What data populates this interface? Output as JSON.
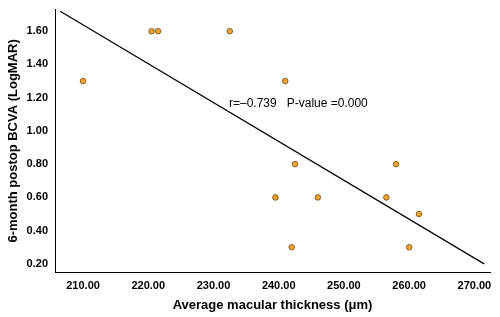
{
  "chart_data": {
    "type": "scatter",
    "x_label": "Average macular thickness (μm)",
    "y_label": "6-month postop BCVA (LogMAR)",
    "annotation": "r=–0.739   P-value =0.000",
    "series": [
      {
        "type": "scatter",
        "color": "#e8a33a",
        "marker": "circle",
        "x": [
          210,
          220.5,
          221.5,
          232.5,
          239.5,
          241,
          242,
          242.5,
          246,
          256.5,
          258,
          260,
          261.5
        ],
        "values": [
          1.3,
          1.6,
          1.6,
          1.6,
          0.6,
          1.3,
          0.3,
          0.8,
          0.6,
          0.6,
          0.8,
          0.3,
          0.5
        ]
      },
      {
        "type": "line",
        "color": "#000000",
        "line_style": "solid",
        "x": [
          206.5,
          271.5
        ],
        "values": [
          1.72,
          0.2
        ]
      }
    ],
    "xlim": [
      205.7,
      272.4
    ],
    "xticks": [
      {
        "value": 210,
        "label": "210.00"
      },
      {
        "value": 220,
        "label": "220.00"
      },
      {
        "value": 230,
        "label": "230.00"
      },
      {
        "value": 240,
        "label": "240.00"
      },
      {
        "value": 250,
        "label": "250.00"
      },
      {
        "value": 260,
        "label": "260.00"
      },
      {
        "value": 270,
        "label": "270.00"
      }
    ],
    "ylim": [
      0.15,
      1.73
    ],
    "yticks": [
      {
        "value": 0.2,
        "label": "0.20"
      },
      {
        "value": 0.4,
        "label": "0.40"
      },
      {
        "value": 0.6,
        "label": "0.60"
      },
      {
        "value": 0.8,
        "label": "0.80"
      },
      {
        "value": 1.0,
        "label": "1.00"
      },
      {
        "value": 1.2,
        "label": "1.20"
      },
      {
        "value": 1.4,
        "label": "1.40"
      },
      {
        "value": 1.6,
        "label": "1.60"
      }
    ],
    "grid": false
  }
}
